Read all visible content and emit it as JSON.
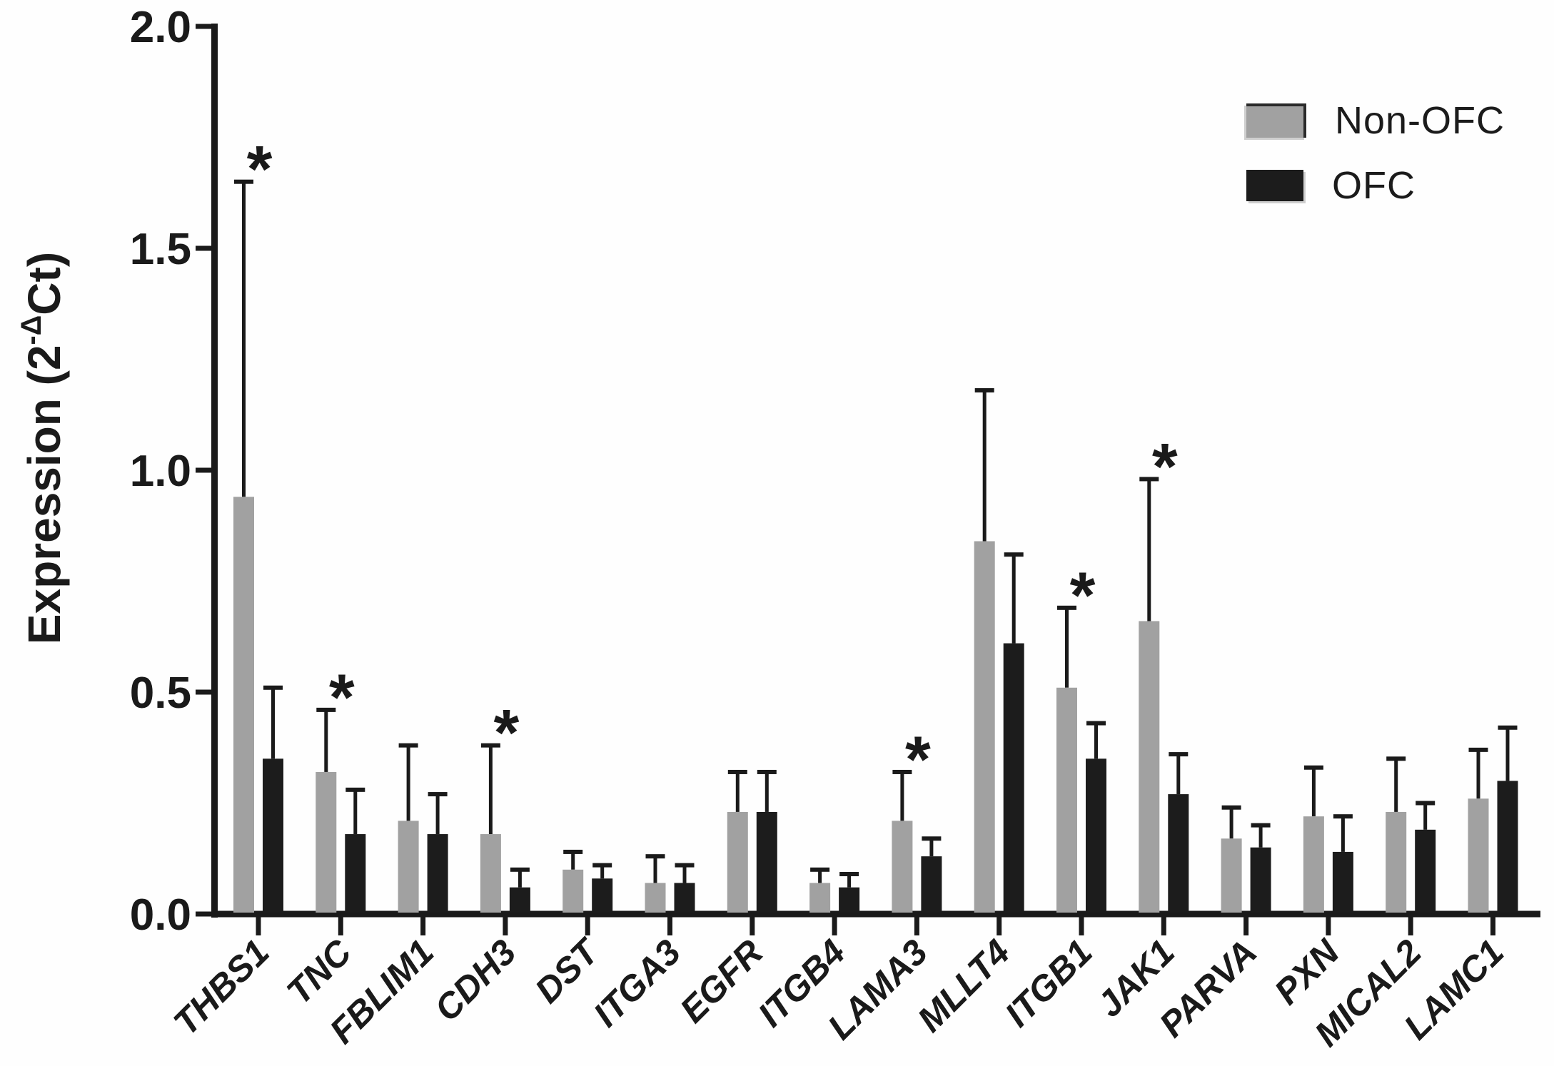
{
  "figure": {
    "background": "#fefefe",
    "text_color": "#1a1a1a"
  },
  "y_axis": {
    "title_prefix": "Expression (2",
    "title_sup": "-Δ",
    "title_suffix": "Ct)",
    "tick_labels": [
      "0.0",
      "0.5",
      "1.0",
      "1.5",
      "2.0"
    ]
  },
  "legend": {
    "items": [
      {
        "label": "Non-OFC",
        "color": "#a1a1a1"
      },
      {
        "label": "OFC",
        "color": "#1c1c1c"
      }
    ],
    "position": "top-right"
  },
  "chart_data": {
    "type": "bar",
    "title": "",
    "xlabel": "",
    "ylabel": "Expression (2^-ΔCt)",
    "ylim": [
      0,
      2.0
    ],
    "yticks": [
      0.0,
      0.5,
      1.0,
      1.5,
      2.0
    ],
    "grid": false,
    "legend_position": "top-right",
    "error_bars": "upper SD with caps",
    "significance_marker": "*",
    "significant_categories": [
      "THBS1",
      "TNC",
      "CDH3",
      "LAMA3",
      "ITGB1",
      "JAK1"
    ],
    "categories": [
      "THBS1",
      "TNC",
      "FBLIM1",
      "CDH3",
      "DST",
      "ITGA3",
      "EGFR",
      "ITGB4",
      "LAMA3",
      "MLLT4",
      "ITGB1",
      "JAK1",
      "PARVA",
      "PXN",
      "MICAL2",
      "LAMC1"
    ],
    "series": [
      {
        "name": "Non-OFC",
        "color": "#a1a1a1",
        "values": [
          0.94,
          0.32,
          0.21,
          0.18,
          0.1,
          0.07,
          0.23,
          0.07,
          0.21,
          0.84,
          0.51,
          0.66,
          0.17,
          0.22,
          0.23,
          0.26
        ],
        "error_tops": [
          1.65,
          0.46,
          0.38,
          0.38,
          0.14,
          0.13,
          0.32,
          0.1,
          0.32,
          1.18,
          0.69,
          0.98,
          0.24,
          0.33,
          0.35,
          0.37
        ]
      },
      {
        "name": "OFC",
        "color": "#1c1c1c",
        "values": [
          0.35,
          0.18,
          0.18,
          0.06,
          0.08,
          0.07,
          0.23,
          0.06,
          0.13,
          0.61,
          0.35,
          0.27,
          0.15,
          0.14,
          0.19,
          0.3
        ],
        "error_tops": [
          0.51,
          0.28,
          0.27,
          0.1,
          0.11,
          0.11,
          0.32,
          0.09,
          0.17,
          0.81,
          0.43,
          0.36,
          0.2,
          0.22,
          0.25,
          0.42
        ]
      }
    ]
  }
}
